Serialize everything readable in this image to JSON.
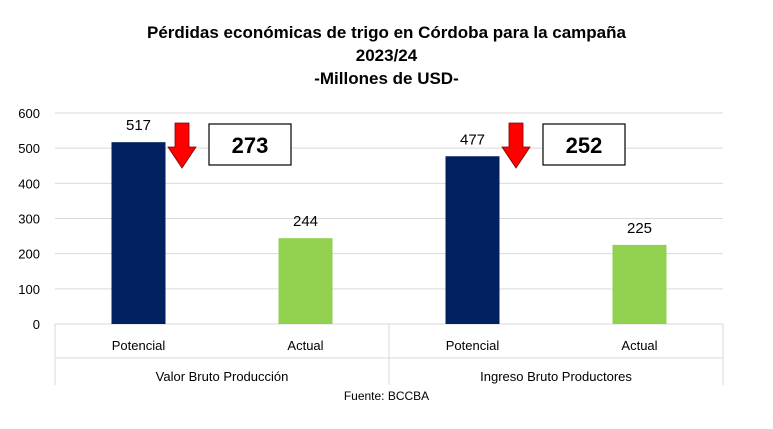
{
  "chart_data": {
    "type": "bar",
    "title_lines": [
      "Pérdidas económicas de trigo en Córdoba para la campaña",
      "2023/24",
      "-Millones de USD-"
    ],
    "ylim": [
      0,
      600
    ],
    "yticks": [
      0,
      100,
      200,
      300,
      400,
      500,
      600
    ],
    "groups": [
      {
        "label": "Valor Bruto Producción",
        "bars": [
          {
            "category": "Potencial",
            "value": 517,
            "color": "#002060"
          },
          {
            "category": "Actual",
            "value": 244,
            "color": "#92D050"
          }
        ],
        "loss": 273
      },
      {
        "label": "Ingreso Bruto Productores",
        "bars": [
          {
            "category": "Potencial",
            "value": 477,
            "color": "#002060"
          },
          {
            "category": "Actual",
            "value": 225,
            "color": "#92D050"
          }
        ],
        "loss": 252
      }
    ],
    "arrow_color": "#FF0000",
    "grid": true
  },
  "source": "Fuente: BCCBA"
}
